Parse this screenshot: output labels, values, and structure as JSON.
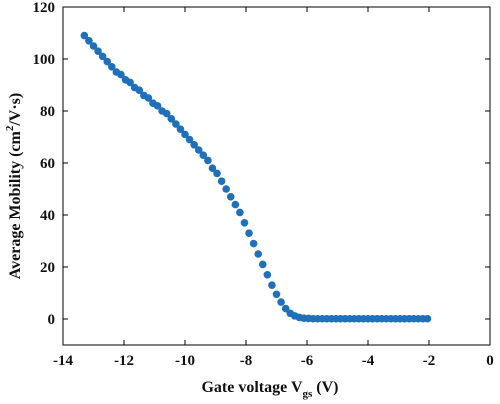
{
  "chart_data": {
    "type": "scatter",
    "title": "",
    "xlabel": {
      "main": "Gate voltage V",
      "sub": "gs",
      "unit": " (V)"
    },
    "ylabel": {
      "main": "Average Mobility (cm",
      "sup": "2",
      "unit": "/V·s)"
    },
    "xlim": [
      -14,
      0
    ],
    "ylim": [
      -10,
      120
    ],
    "xticks": [
      -14,
      -12,
      -10,
      -8,
      -6,
      -4,
      -2,
      0
    ],
    "yticks": [
      0,
      20,
      40,
      60,
      80,
      100,
      120
    ],
    "xtick_labels": [
      "-14",
      "-12",
      "-10",
      "-8",
      "-6",
      "-4",
      "-2",
      "0"
    ],
    "ytick_labels": [
      "0",
      "20",
      "40",
      "60",
      "80",
      "100",
      "120"
    ],
    "grid": false,
    "marker_color": "#1f70b8",
    "series": [
      {
        "x": [
          -13.3,
          -13.15,
          -13.0,
          -12.85,
          -12.7,
          -12.55,
          -12.4,
          -12.25,
          -12.1,
          -11.95,
          -11.8,
          -11.65,
          -11.5,
          -11.35,
          -11.2,
          -11.05,
          -10.9,
          -10.75,
          -10.6,
          -10.45,
          -10.3,
          -10.15,
          -10.0,
          -9.85,
          -9.7,
          -9.55,
          -9.4,
          -9.25,
          -9.1,
          -8.95,
          -8.8,
          -8.65,
          -8.5,
          -8.35,
          -8.2,
          -8.05,
          -7.9,
          -7.75,
          -7.6,
          -7.45,
          -7.3,
          -7.15,
          -7.0,
          -6.85,
          -6.7,
          -6.55,
          -6.4,
          -6.25,
          -6.1,
          -5.95,
          -5.8,
          -5.65,
          -5.5,
          -5.35,
          -5.2,
          -5.05,
          -4.9,
          -4.75,
          -4.6,
          -4.45,
          -4.3,
          -4.15,
          -4.0,
          -3.85,
          -3.7,
          -3.55,
          -3.4,
          -3.25,
          -3.1,
          -2.95,
          -2.8,
          -2.65,
          -2.5,
          -2.35,
          -2.2,
          -2.05
        ],
        "y": [
          109,
          107,
          105,
          103,
          101,
          99,
          97,
          95,
          94,
          92,
          91,
          89,
          88,
          86,
          85,
          83,
          82,
          80,
          79,
          77,
          75,
          73,
          71,
          69,
          67,
          65,
          63,
          61,
          58,
          56,
          53,
          50,
          47,
          44,
          41,
          37,
          33,
          29,
          25,
          21,
          17,
          13,
          9.5,
          6.5,
          4,
          2.2,
          1.2,
          0.6,
          0.3,
          0.2,
          0.1,
          0.1,
          0.1,
          0.1,
          0.1,
          0.1,
          0.1,
          0.1,
          0.1,
          0.1,
          0.1,
          0.1,
          0.1,
          0.1,
          0.1,
          0.1,
          0.1,
          0.1,
          0.1,
          0.1,
          0.1,
          0.1,
          0.1,
          0.1,
          0.1,
          0.1
        ]
      }
    ]
  }
}
